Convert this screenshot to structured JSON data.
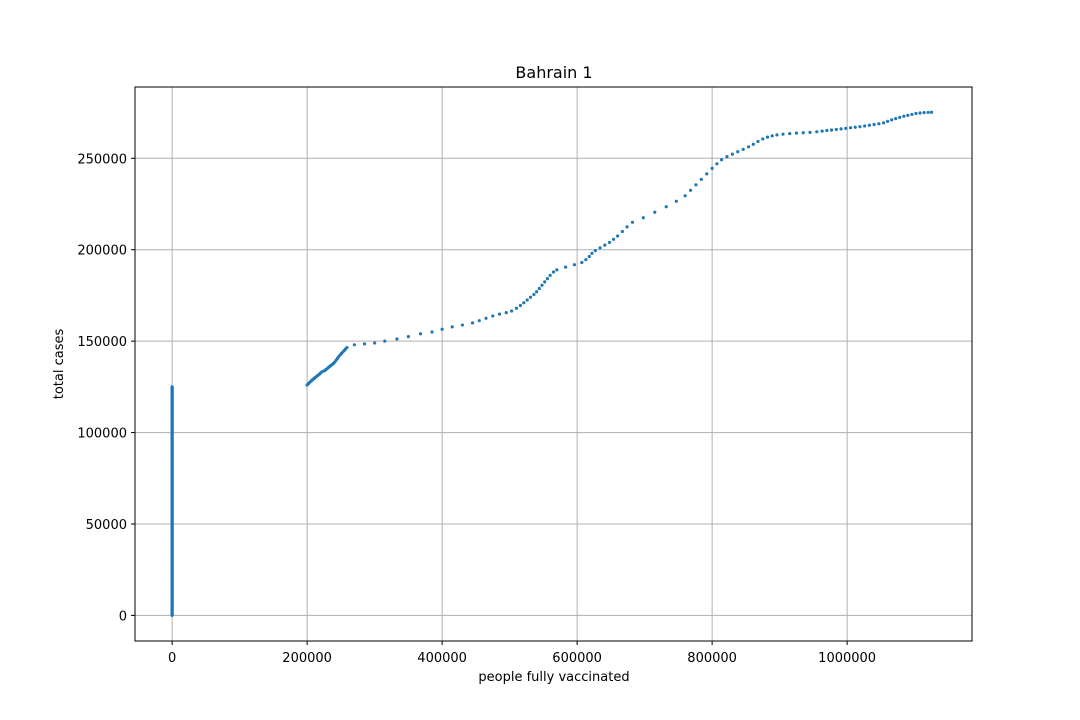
{
  "chart_data": {
    "type": "scatter",
    "title": "Bahrain 1",
    "xlabel": "people fully vaccinated",
    "ylabel": "total cases",
    "xlim": [
      -55000,
      1185000
    ],
    "ylim": [
      -14000,
      289000
    ],
    "x_ticks": [
      0,
      200000,
      400000,
      600000,
      800000,
      1000000
    ],
    "x_tick_labels": [
      "0",
      "200000",
      "400000",
      "600000",
      "800000",
      "1000000"
    ],
    "y_ticks": [
      0,
      50000,
      100000,
      150000,
      200000,
      250000
    ],
    "y_tick_labels": [
      "0",
      "50000",
      "100000",
      "150000",
      "200000",
      "250000"
    ],
    "grid": true,
    "marker_color": "#1f77b4",
    "series": [
      {
        "x_zero_segment": {
          "x": 0,
          "y_from": 0,
          "y_to": 125000,
          "count": 300
        },
        "points": [
          [
            200000,
            126000
          ],
          [
            202000,
            126800
          ],
          [
            204000,
            127500
          ],
          [
            206000,
            128200
          ],
          [
            208000,
            128900
          ],
          [
            210000,
            129500
          ],
          [
            212000,
            130100
          ],
          [
            214000,
            130700
          ],
          [
            216000,
            131300
          ],
          [
            218000,
            131900
          ],
          [
            220000,
            132600
          ],
          [
            222000,
            133300
          ],
          [
            225000,
            133700
          ],
          [
            227000,
            134200
          ],
          [
            229000,
            134800
          ],
          [
            231000,
            135400
          ],
          [
            233000,
            136000
          ],
          [
            235000,
            136600
          ],
          [
            237000,
            137200
          ],
          [
            239000,
            137800
          ],
          [
            241000,
            138600
          ],
          [
            243000,
            139600
          ],
          [
            245000,
            140600
          ],
          [
            247000,
            141600
          ],
          [
            249000,
            142500
          ],
          [
            251000,
            143300
          ],
          [
            253000,
            144100
          ],
          [
            255000,
            144900
          ],
          [
            257000,
            145700
          ],
          [
            259000,
            146500
          ],
          [
            270000,
            148000
          ],
          [
            285000,
            148500
          ],
          [
            300000,
            149000
          ],
          [
            315000,
            150000
          ],
          [
            333000,
            151200
          ],
          [
            350000,
            152500
          ],
          [
            368000,
            154000
          ],
          [
            385000,
            155000
          ],
          [
            400000,
            156500
          ],
          [
            415000,
            157800
          ],
          [
            430000,
            158800
          ],
          [
            445000,
            160000
          ],
          [
            455000,
            161200
          ],
          [
            465000,
            162500
          ],
          [
            475000,
            163800
          ],
          [
            485000,
            164800
          ],
          [
            495000,
            165600
          ],
          [
            503000,
            166500
          ],
          [
            510000,
            168000
          ],
          [
            516000,
            169500
          ],
          [
            521000,
            171000
          ],
          [
            526000,
            172500
          ],
          [
            531000,
            174000
          ],
          [
            536000,
            175500
          ],
          [
            540000,
            177000
          ],
          [
            544000,
            178800
          ],
          [
            548000,
            180600
          ],
          [
            552000,
            182400
          ],
          [
            556000,
            184200
          ],
          [
            560000,
            186000
          ],
          [
            565000,
            187800
          ],
          [
            570000,
            189000
          ],
          [
            583000,
            190500
          ],
          [
            596000,
            191800
          ],
          [
            607000,
            193000
          ],
          [
            613000,
            194600
          ],
          [
            618000,
            196300
          ],
          [
            622000,
            198000
          ],
          [
            627000,
            199500
          ],
          [
            634000,
            201000
          ],
          [
            641000,
            202500
          ],
          [
            648000,
            204000
          ],
          [
            654000,
            205700
          ],
          [
            660000,
            207500
          ],
          [
            667000,
            210000
          ],
          [
            674000,
            212500
          ],
          [
            682000,
            215000
          ],
          [
            698000,
            217500
          ],
          [
            715000,
            220500
          ],
          [
            732000,
            223500
          ],
          [
            747000,
            226500
          ],
          [
            760000,
            229500
          ],
          [
            768000,
            232500
          ],
          [
            776000,
            235500
          ],
          [
            784000,
            238500
          ],
          [
            792000,
            241500
          ],
          [
            800000,
            244500
          ],
          [
            807000,
            247000
          ],
          [
            814000,
            249200
          ],
          [
            822000,
            250900
          ],
          [
            830000,
            252300
          ],
          [
            838000,
            253600
          ],
          [
            846000,
            254900
          ],
          [
            854000,
            256300
          ],
          [
            861000,
            257700
          ],
          [
            868000,
            259200
          ],
          [
            875000,
            260600
          ],
          [
            882000,
            261600
          ],
          [
            889000,
            262300
          ],
          [
            896000,
            262800
          ],
          [
            905000,
            263200
          ],
          [
            915000,
            263500
          ],
          [
            925000,
            263800
          ],
          [
            935000,
            264000
          ],
          [
            945000,
            264200
          ],
          [
            955000,
            264500
          ],
          [
            963000,
            264900
          ],
          [
            970000,
            265200
          ],
          [
            977000,
            265500
          ],
          [
            984000,
            265800
          ],
          [
            991000,
            266100
          ],
          [
            998000,
            266400
          ],
          [
            1005000,
            266700
          ],
          [
            1012000,
            267000
          ],
          [
            1019000,
            267300
          ],
          [
            1026000,
            267700
          ],
          [
            1033000,
            268100
          ],
          [
            1040000,
            268500
          ],
          [
            1047000,
            268900
          ],
          [
            1054000,
            269400
          ],
          [
            1060000,
            270200
          ],
          [
            1066000,
            271000
          ],
          [
            1072000,
            271700
          ],
          [
            1078000,
            272400
          ],
          [
            1084000,
            273000
          ],
          [
            1090000,
            273500
          ],
          [
            1096000,
            274000
          ],
          [
            1102000,
            274500
          ],
          [
            1108000,
            274800
          ],
          [
            1114000,
            275000
          ],
          [
            1120000,
            275100
          ],
          [
            1125000,
            275200
          ]
        ]
      }
    ]
  }
}
